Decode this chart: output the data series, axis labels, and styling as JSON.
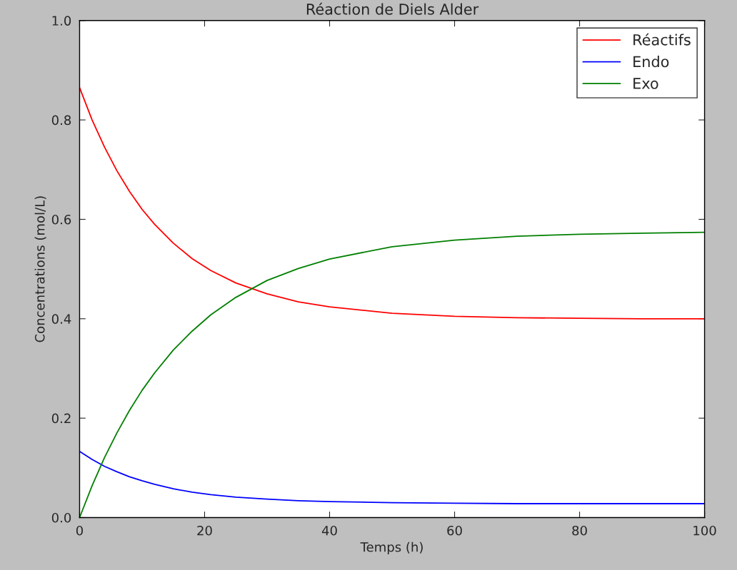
{
  "chart_data": {
    "type": "line",
    "title": "Réaction de Diels Alder",
    "xlabel": "Temps (h)",
    "ylabel": "Concentrations (mol/L)",
    "x": [
      0,
      2,
      4,
      6,
      8,
      10,
      12,
      15,
      18,
      21,
      25,
      30,
      35,
      40,
      50,
      60,
      70,
      80,
      90,
      100
    ],
    "series": [
      {
        "name": "Réactifs",
        "color": "#ff0000",
        "values": [
          0.865,
          0.8,
          0.745,
          0.697,
          0.656,
          0.62,
          0.59,
          0.552,
          0.521,
          0.497,
          0.472,
          0.45,
          0.434,
          0.424,
          0.411,
          0.405,
          0.402,
          0.401,
          0.4,
          0.4
        ]
      },
      {
        "name": "Endo",
        "color": "#0000ff",
        "values": [
          0.133,
          0.117,
          0.103,
          0.092,
          0.082,
          0.074,
          0.067,
          0.058,
          0.051,
          0.046,
          0.041,
          0.037,
          0.034,
          0.032,
          0.03,
          0.029,
          0.028,
          0.028,
          0.028,
          0.028
        ]
      },
      {
        "name": "Exo",
        "color": "#008000",
        "values": [
          0,
          0.064,
          0.121,
          0.171,
          0.216,
          0.256,
          0.291,
          0.337,
          0.375,
          0.408,
          0.443,
          0.477,
          0.501,
          0.52,
          0.545,
          0.558,
          0.566,
          0.57,
          0.572,
          0.574
        ]
      }
    ],
    "xlim": [
      0,
      100
    ],
    "xticks": [
      0,
      20,
      40,
      60,
      80,
      100
    ],
    "ylim": [
      0.0,
      1.0
    ],
    "yticks": [
      {
        "value": 0,
        "label": "0.0"
      },
      0.2,
      0.4,
      0.6,
      0.8,
      {
        "value": 1,
        "label": "1.0"
      }
    ],
    "legend": "top right",
    "grid": false,
    "line_style": "solid",
    "marker": "none"
  }
}
